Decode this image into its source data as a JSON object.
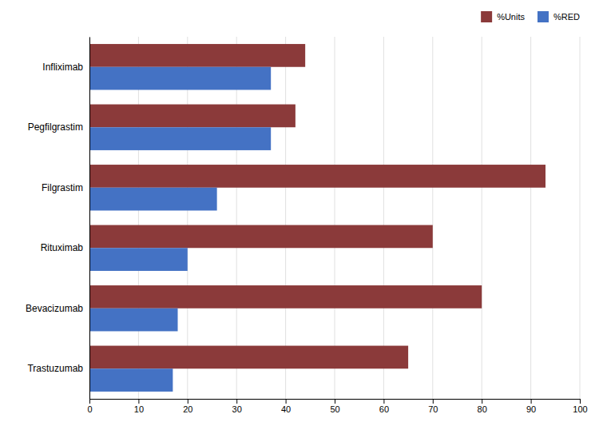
{
  "chart_data": {
    "type": "bar",
    "orientation": "horizontal",
    "categories": [
      "Infliximab",
      "Pegfilgrastim",
      "Filgrastim",
      "Rituximab",
      "Bevacizumab",
      "Trastuzumab"
    ],
    "series": [
      {
        "name": "%Units",
        "color": "#8B3A3A",
        "values": [
          44,
          42,
          93,
          70,
          80,
          65
        ]
      },
      {
        "name": "%RED",
        "color": "#4472C4",
        "values": [
          37,
          37,
          26,
          20,
          18,
          17
        ]
      }
    ],
    "xlim": [
      0,
      100
    ],
    "xticks": [
      0,
      10,
      20,
      30,
      40,
      50,
      60,
      70,
      80,
      90,
      100
    ],
    "grid": true,
    "legend": "upper right"
  }
}
